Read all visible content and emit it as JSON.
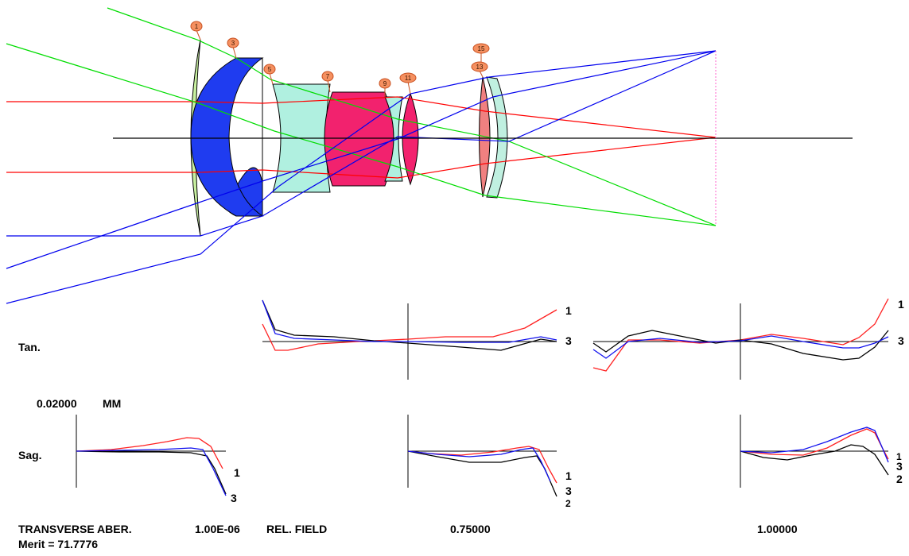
{
  "colors": {
    "ray_red": "#ff0000",
    "ray_green": "#00dd00",
    "ray_blue": "#0000ee",
    "trace_black": "#000000",
    "trace_red": "#ff2020",
    "trace_blue": "#1010ee",
    "marker_fill": "#f59060",
    "marker_stroke": "#c85020"
  },
  "surface_markers": [
    "1",
    "3",
    "5",
    "7",
    "9",
    "11",
    "15",
    "13"
  ],
  "panels": {
    "tan_label": "Tan.",
    "sag_label": "Sag.",
    "scale_value": "0.02000",
    "scale_unit": "MM"
  },
  "curve_labels": {
    "tan_2": [
      "1",
      "3"
    ],
    "tan_3": [
      "1",
      "3"
    ],
    "sag_1": [
      "1",
      "3"
    ],
    "sag_2": [
      "1",
      "3",
      "2"
    ],
    "sag_3": [
      "1",
      "3",
      "2"
    ]
  },
  "footer": {
    "title": "TRANSVERSE ABER.",
    "value": "1.00E-06",
    "field_label": "REL. FIELD",
    "field_2": "0.75000",
    "field_3": "1.00000",
    "merit": "Merit = 71.7776"
  }
}
